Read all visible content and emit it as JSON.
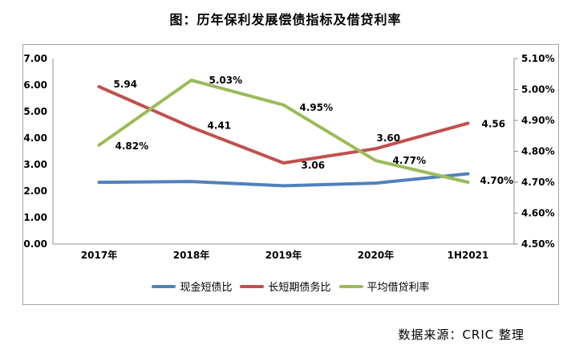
{
  "title": "图：历年保利发展偿债指标及借贷利率",
  "source": "数据来源：CRIC 整理",
  "chart_data": {
    "type": "line",
    "categories": [
      "2017年",
      "2018年",
      "2019年",
      "2020年",
      "1H2021"
    ],
    "series": [
      {
        "name": "现金短债比",
        "axis": "left",
        "color": "#4F81BD",
        "values": [
          2.33,
          2.36,
          2.2,
          2.3,
          2.65
        ],
        "labels": null
      },
      {
        "name": "长短期债务比",
        "axis": "left",
        "color": "#C0504D",
        "values": [
          5.94,
          4.41,
          3.06,
          3.6,
          4.56
        ],
        "labels": [
          "5.94",
          "4.41",
          "3.06",
          "3.60",
          "4.56"
        ]
      },
      {
        "name": "平均借贷利率",
        "axis": "right",
        "color": "#9BBB59",
        "values": [
          4.82,
          5.03,
          4.95,
          4.77,
          4.7
        ],
        "labels": [
          "4.82%",
          "5.03%",
          "4.95%",
          "4.77%",
          "4.70%"
        ]
      }
    ],
    "left_axis": {
      "min": 0,
      "max": 7,
      "ticks": [
        "0.00",
        "1.00",
        "2.00",
        "3.00",
        "4.00",
        "5.00",
        "6.00",
        "7.00"
      ]
    },
    "right_axis": {
      "min": 4.5,
      "max": 5.1,
      "ticks": [
        "4.50%",
        "4.60%",
        "4.70%",
        "4.80%",
        "4.90%",
        "5.00%",
        "5.10%"
      ]
    },
    "legend_position": "bottom",
    "grid": false
  }
}
